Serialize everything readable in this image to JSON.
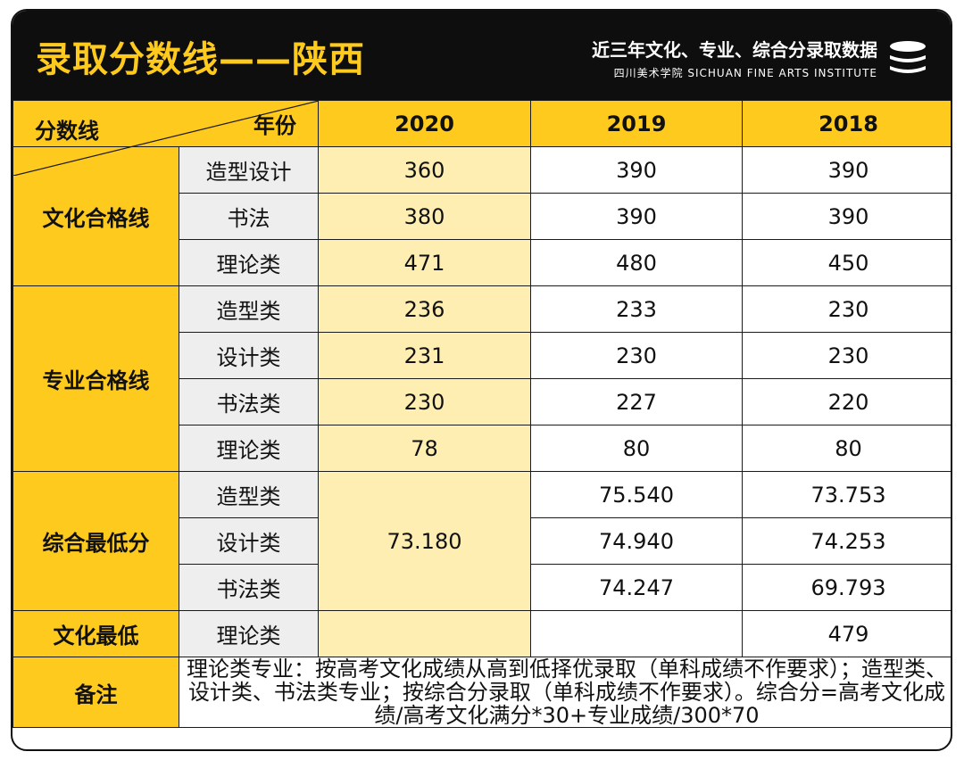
{
  "header": {
    "title": "录取分数线——陕西",
    "subtitle": "近三年文化、专业、综合分录取数据",
    "institute": "四川美术学院 SICHUAN FINE ARTS INSTITUTE"
  },
  "colors": {
    "accent": "#FFCA1E",
    "highlight_column": "#FEEEB2",
    "header_bg": "#0e0e0e",
    "sub_bg": "#eeeeee"
  },
  "table": {
    "corner_top": "分数线",
    "corner_bottom": "年份",
    "years": [
      "2020",
      "2019",
      "2018"
    ],
    "categories": [
      "文化合格线",
      "专业合格线",
      "综合最低分",
      "文化最低"
    ],
    "rows": [
      {
        "sub": "造型设计",
        "v2020": "360",
        "v2019": "390",
        "v2018": "390"
      },
      {
        "sub": "书法",
        "v2020": "380",
        "v2019": "390",
        "v2018": "390"
      },
      {
        "sub": "理论类",
        "v2020": "471",
        "v2019": "480",
        "v2018": "450"
      },
      {
        "sub": "造型类",
        "v2020": "236",
        "v2019": "233",
        "v2018": "230"
      },
      {
        "sub": "设计类",
        "v2020": "231",
        "v2019": "230",
        "v2018": "230"
      },
      {
        "sub": "书法类",
        "v2020": "230",
        "v2019": "227",
        "v2018": "220"
      },
      {
        "sub": "理论类",
        "v2020": "78",
        "v2019": "80",
        "v2018": "80"
      },
      {
        "sub": "造型类",
        "v2020": "",
        "v2019": "75.540",
        "v2018": "73.753"
      },
      {
        "sub": "设计类",
        "v2020": "73.180",
        "v2019": "74.940",
        "v2018": "74.253"
      },
      {
        "sub": "书法类",
        "v2020": "",
        "v2019": "74.247",
        "v2018": "69.793"
      },
      {
        "sub": "理论类",
        "v2020": "",
        "v2019": "",
        "v2018": "479"
      }
    ],
    "note_label": "备注",
    "note_text": "理论类专业：按高考文化成绩从高到低择优录取（单科成绩不作要求）；造型类、设计类、书法类专业；按综合分录取（单科成绩不作要求）。综合分=高考文化成绩/高考文化满分*30+专业成绩/300*70"
  }
}
